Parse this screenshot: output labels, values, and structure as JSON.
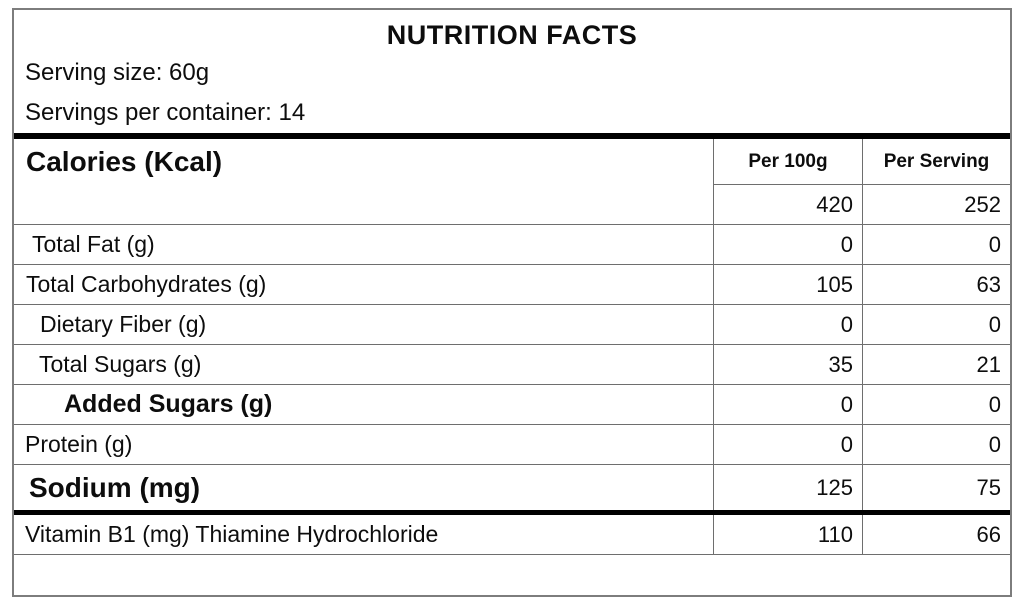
{
  "title": "NUTRITION FACTS",
  "serving_size": "Serving size: 60g",
  "servings_per_container": "Servings per container: 14",
  "table": {
    "header": {
      "calories_label": "Calories (Kcal)",
      "col_per_100g": "Per 100g",
      "col_per_serving": "Per Serving"
    },
    "calories_values": {
      "per_100g": "420",
      "per_serving": "252"
    },
    "rows": [
      {
        "label": "Total Fat (g)",
        "per_100g": "0",
        "per_serving": "0"
      },
      {
        "label": "Total Carbohydrates (g)",
        "per_100g": "105",
        "per_serving": "63"
      },
      {
        "label": "Dietary Fiber (g)",
        "per_100g": "0",
        "per_serving": "0"
      },
      {
        "label": "Total Sugars (g)",
        "per_100g": "35",
        "per_serving": "21"
      },
      {
        "label": "Added Sugars (g)",
        "per_100g": "0",
        "per_serving": "0"
      },
      {
        "label": "Protein (g)",
        "per_100g": "0",
        "per_serving": "0"
      },
      {
        "label": "Sodium (mg)",
        "per_100g": "125",
        "per_serving": "75"
      }
    ],
    "footer_row": {
      "label": "Vitamin B1 (mg) Thiamine Hydrochloride",
      "per_100g": "110",
      "per_serving": "66"
    }
  },
  "colors": {
    "text": "#0d0d0d",
    "thin_line": "#6e6e6e",
    "thick_line": "#000000",
    "outer_border": "#7d7d7d",
    "background": "#ffffff"
  }
}
